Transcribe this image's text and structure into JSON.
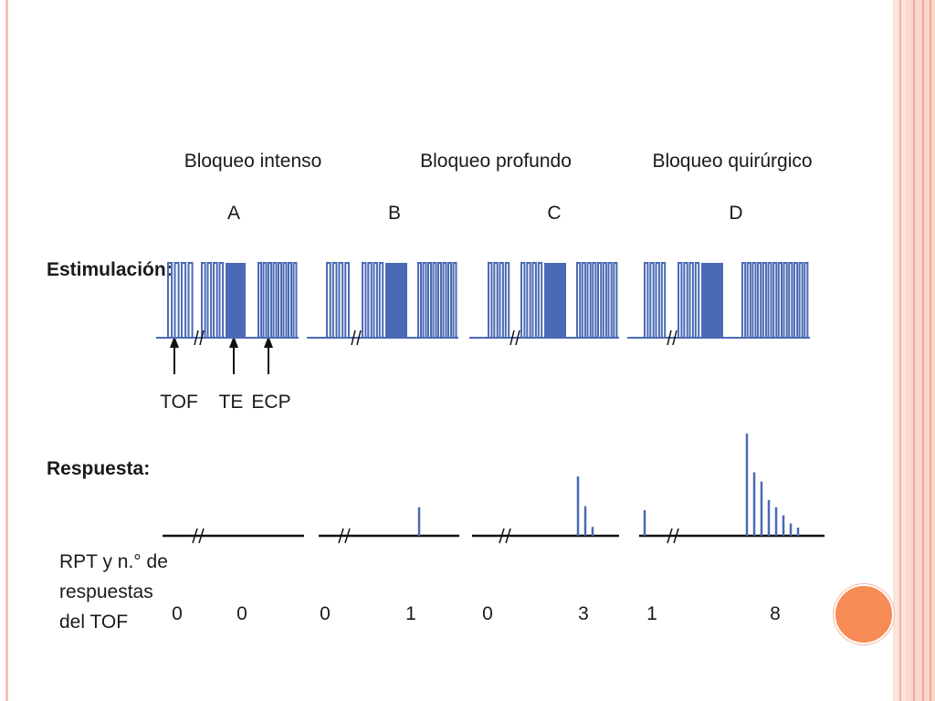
{
  "block_titles": [
    "Bloqueo intenso",
    "Bloqueo profundo",
    "Bloqueo quirúrgico"
  ],
  "panel_letters": [
    "A",
    "B",
    "C",
    "D"
  ],
  "row_labels": {
    "stimulation": "Estimulación:",
    "response": "Respuesta:",
    "counts_line1": "RPT y n.° de",
    "counts_line2": "respuestas",
    "counts_line3": "del TOF"
  },
  "arrow_labels": [
    "TOF",
    "TE",
    "ECP"
  ],
  "counts": [
    "0",
    "0",
    "0",
    "1",
    "0",
    "3",
    "1",
    "8"
  ],
  "colors": {
    "signal": "#4a6ab5",
    "baseline": "#111111",
    "text": "#1a1a1a",
    "accent_dot": "#f78b55"
  },
  "panels": [
    {
      "letter": "A",
      "ptc_responses": 0,
      "tof_responses": 0,
      "tof_heights": []
    },
    {
      "letter": "B",
      "ptc_responses": 0,
      "tof_responses": 1,
      "tof_heights": [
        1.0
      ]
    },
    {
      "letter": "C",
      "ptc_responses": 0,
      "tof_responses": 3,
      "tof_heights": [
        1.0,
        0.5,
        0.15
      ]
    },
    {
      "letter": "D",
      "ptc_responses": 1,
      "tof_responses": 8,
      "tof_heights": [
        1.0,
        0.62,
        0.53,
        0.35,
        0.28,
        0.2,
        0.12,
        0.08
      ]
    }
  ]
}
